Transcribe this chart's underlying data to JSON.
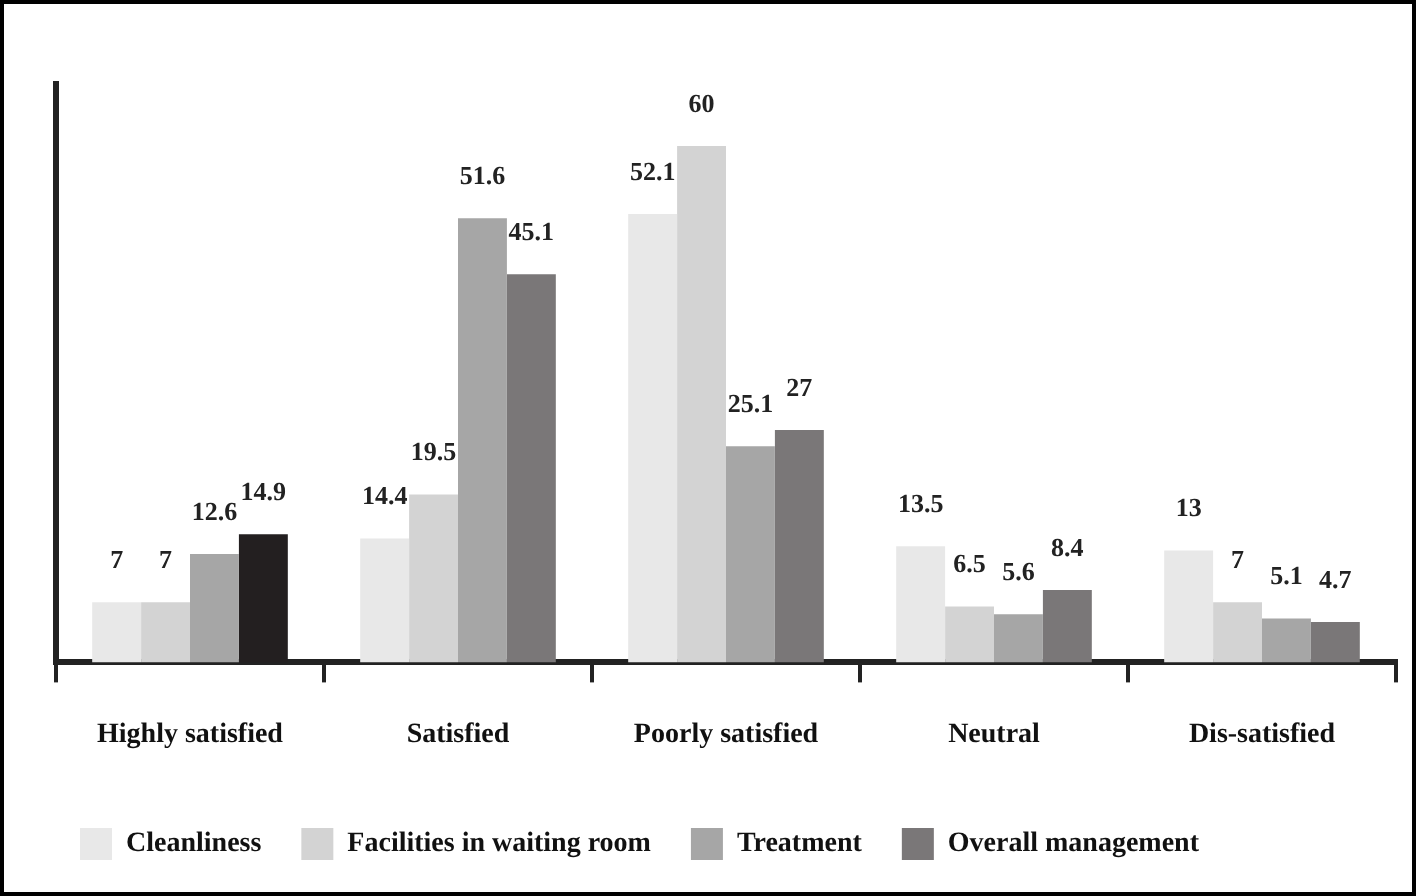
{
  "chart_data": {
    "type": "bar",
    "categories": [
      "Highly satisfied",
      "Satisfied",
      "Poorly satisfied",
      "Neutral",
      "Dis-satisfied"
    ],
    "series": [
      {
        "name": "Cleanliness",
        "color": "#e8e8e8",
        "values": [
          7,
          14.4,
          52.1,
          13.5,
          13
        ]
      },
      {
        "name": "Facilities in waiting room",
        "color": "#d3d3d3",
        "values": [
          7,
          19.5,
          60,
          6.5,
          7
        ]
      },
      {
        "name": "Treatment",
        "color": "#a6a6a6",
        "values": [
          12.6,
          51.6,
          25.1,
          5.6,
          5.1
        ]
      },
      {
        "name": "Overall management",
        "color": "#7a7778",
        "colors": [
          "#231f20",
          "#7a7778",
          "#7a7778",
          "#7a7778",
          "#7a7778"
        ],
        "values": [
          14.9,
          45.1,
          27,
          8.4,
          4.7
        ]
      }
    ],
    "data_labels": true,
    "legend": "bottom",
    "grid": false
  }
}
